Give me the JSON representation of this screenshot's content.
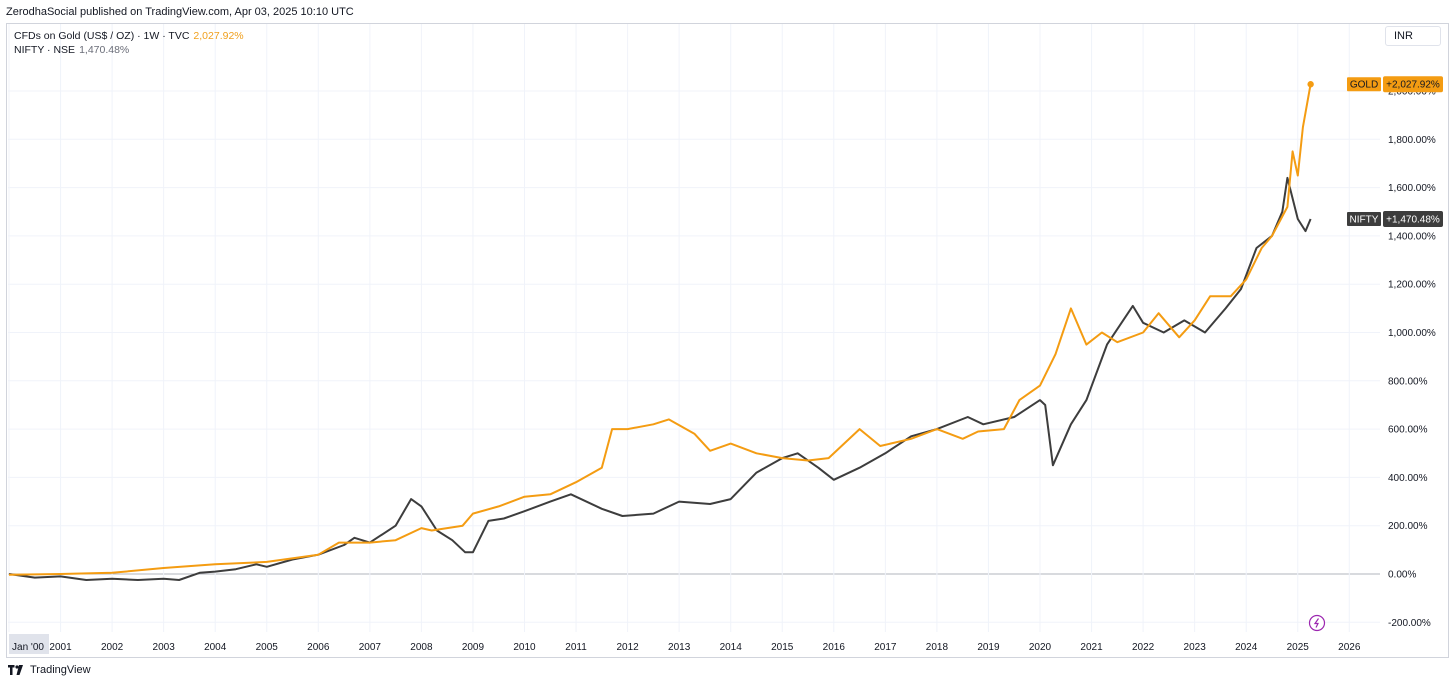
{
  "header": {
    "published": "ZerodhaSocial published on TradingView.com, Apr 03, 2025 10:10 UTC"
  },
  "legend": {
    "gold_name": "CFDs on Gold (US$ / OZ) · 1W · TVC",
    "gold_value": "2,027.92%",
    "nifty_name": "NIFTY · NSE",
    "nifty_value": "1,470.48%"
  },
  "currency_button": "INR",
  "footer": {
    "brand": "TradingView"
  },
  "colors": {
    "gold": "#f49c12",
    "nifty": "#3d3d3d",
    "grid": "#f0f3fa",
    "zero_line": "#b2b5be"
  },
  "chart_data": {
    "type": "line",
    "ylim": [
      -200,
      2100
    ],
    "xlim": [
      2000.0,
      2026.5
    ],
    "y_ticks": [
      "2,000.00%",
      "1,800.00%",
      "1,600.00%",
      "1,400.00%",
      "1,200.00%",
      "1,000.00%",
      "800.00%",
      "600.00%",
      "400.00%",
      "200.00%",
      "0.00%",
      "-200.00%"
    ],
    "y_tick_values": [
      2000,
      1800,
      1600,
      1400,
      1200,
      1000,
      800,
      600,
      400,
      200,
      0,
      -200
    ],
    "x_ticks": [
      "Jan '00",
      "2001",
      "2002",
      "2003",
      "2004",
      "2005",
      "2006",
      "2007",
      "2008",
      "2009",
      "2010",
      "2011",
      "2012",
      "2013",
      "2014",
      "2015",
      "2016",
      "2017",
      "2018",
      "2019",
      "2020",
      "2021",
      "2022",
      "2023",
      "2024",
      "2025",
      "2026"
    ],
    "x_tick_values": [
      2000,
      2001,
      2002,
      2003,
      2004,
      2005,
      2006,
      2007,
      2008,
      2009,
      2010,
      2011,
      2012,
      2013,
      2014,
      2015,
      2016,
      2017,
      2018,
      2019,
      2020,
      2021,
      2022,
      2023,
      2024,
      2025,
      2026
    ],
    "series": [
      {
        "name": "GOLD",
        "label": "+2,027.92%",
        "x": [
          2000.0,
          2001.0,
          2002.0,
          2003.0,
          2004.0,
          2005.0,
          2006.0,
          2006.4,
          2007.0,
          2007.5,
          2008.0,
          2008.2,
          2008.8,
          2009.0,
          2009.5,
          2010.0,
          2010.5,
          2011.0,
          2011.5,
          2011.7,
          2012.0,
          2012.5,
          2012.8,
          2013.3,
          2013.6,
          2014.0,
          2014.5,
          2015.0,
          2015.5,
          2015.9,
          2016.5,
          2016.9,
          2017.5,
          2018.0,
          2018.5,
          2018.8,
          2019.3,
          2019.6,
          2020.0,
          2020.3,
          2020.6,
          2020.9,
          2021.2,
          2021.5,
          2022.0,
          2022.3,
          2022.7,
          2023.0,
          2023.3,
          2023.7,
          2024.0,
          2024.3,
          2024.5,
          2024.8,
          2024.9,
          2025.0,
          2025.1,
          2025.25
        ],
        "values": [
          -3,
          0,
          5,
          25,
          40,
          50,
          80,
          130,
          130,
          140,
          190,
          180,
          200,
          250,
          280,
          320,
          330,
          380,
          440,
          600,
          600,
          620,
          640,
          580,
          510,
          540,
          500,
          480,
          470,
          480,
          600,
          530,
          560,
          600,
          560,
          590,
          600,
          720,
          780,
          910,
          1100,
          950,
          1000,
          960,
          1000,
          1080,
          980,
          1050,
          1150,
          1150,
          1220,
          1350,
          1400,
          1520,
          1750,
          1650,
          1850,
          2028
        ]
      },
      {
        "name": "NIFTY",
        "label": "+1,470.48%",
        "x": [
          2000.0,
          2000.5,
          2001.0,
          2001.5,
          2002.0,
          2002.5,
          2003.0,
          2003.3,
          2003.7,
          2004.0,
          2004.4,
          2004.8,
          2005.0,
          2005.5,
          2006.0,
          2006.5,
          2006.7,
          2007.0,
          2007.5,
          2007.8,
          2008.0,
          2008.3,
          2008.6,
          2008.85,
          2009.0,
          2009.3,
          2009.6,
          2010.0,
          2010.5,
          2010.9,
          2011.5,
          2011.9,
          2012.5,
          2013.0,
          2013.6,
          2014.0,
          2014.5,
          2015.0,
          2015.3,
          2015.7,
          2016.0,
          2016.5,
          2017.0,
          2017.5,
          2018.0,
          2018.6,
          2018.9,
          2019.5,
          2020.0,
          2020.1,
          2020.25,
          2020.6,
          2020.9,
          2021.3,
          2021.8,
          2022.0,
          2022.4,
          2022.8,
          2023.2,
          2023.6,
          2023.9,
          2024.2,
          2024.5,
          2024.7,
          2024.8,
          2025.0,
          2025.15,
          2025.25
        ],
        "values": [
          0,
          -15,
          -10,
          -25,
          -20,
          -25,
          -20,
          -25,
          5,
          10,
          20,
          40,
          30,
          60,
          80,
          120,
          150,
          130,
          200,
          310,
          280,
          180,
          140,
          90,
          90,
          220,
          230,
          260,
          300,
          330,
          270,
          240,
          250,
          300,
          290,
          310,
          420,
          480,
          500,
          440,
          390,
          440,
          500,
          570,
          600,
          650,
          620,
          650,
          720,
          700,
          450,
          620,
          720,
          950,
          1110,
          1040,
          1000,
          1050,
          1000,
          1100,
          1180,
          1350,
          1400,
          1500,
          1640,
          1470,
          1420,
          1470
        ]
      }
    ]
  }
}
